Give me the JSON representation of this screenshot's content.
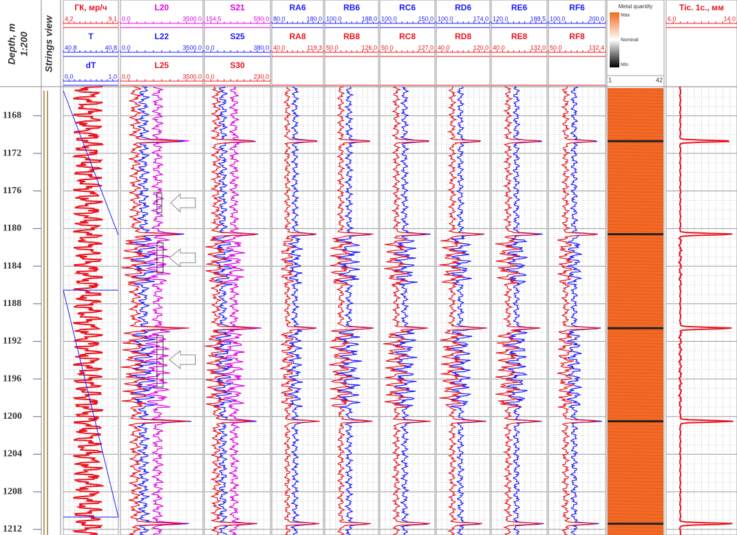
{
  "header": {
    "depth_label": "Depth, m",
    "scale": "1:200",
    "strings_label": "Strings view"
  },
  "depth": {
    "top": 1164.9,
    "bottom": 1212.6,
    "ticks": [
      1168,
      1172,
      1176,
      1180,
      1184,
      1188,
      1192,
      1196,
      1200,
      1204,
      1208,
      1212
    ]
  },
  "collars": [
    1170.7,
    1180.6,
    1190.6,
    1200.5,
    1211.4
  ],
  "tracks": [
    {
      "rows": [
        {
          "label": "ГК, мр/ч",
          "min": "4.2",
          "max": "9.1",
          "color": "#e8141e"
        },
        {
          "label": "T",
          "min": "40.8",
          "max": "40.8",
          "color": "#1a1aff"
        },
        {
          "label": "dT",
          "min": "0.0",
          "max": "1.0",
          "color": "#1a1aff"
        }
      ]
    },
    {
      "rows": [
        {
          "label": "L20",
          "min": "0.0",
          "max": "3500.0",
          "color": "#e000e0"
        },
        {
          "label": "L22",
          "min": "0.0",
          "max": "3500.0",
          "color": "#1a1aff"
        },
        {
          "label": "L25",
          "min": "0.0",
          "max": "3500.0",
          "color": "#e8141e"
        }
      ]
    },
    {
      "rows": [
        {
          "label": "S21",
          "min": "154.5",
          "max": "590.0",
          "color": "#e000e0"
        },
        {
          "label": "S25",
          "min": "0.0",
          "max": "380.0",
          "color": "#1a1aff"
        },
        {
          "label": "S30",
          "min": "0.0",
          "max": "230.0",
          "color": "#e8141e"
        }
      ]
    },
    {
      "rows": [
        {
          "label": "RA6",
          "min": "80.0",
          "max": "180.0",
          "color": "#1a1aff"
        },
        {
          "label": "RA8",
          "min": "40.0",
          "max": "119.3",
          "color": "#e8141e"
        }
      ]
    },
    {
      "rows": [
        {
          "label": "RB6",
          "min": "100.0",
          "max": "188.0",
          "color": "#1a1aff"
        },
        {
          "label": "RB8",
          "min": "50.0",
          "max": "126.0",
          "color": "#e8141e"
        }
      ]
    },
    {
      "rows": [
        {
          "label": "RC6",
          "min": "100.0",
          "max": "150.0",
          "color": "#1a1aff"
        },
        {
          "label": "RC8",
          "min": "50.0",
          "max": "127.0",
          "color": "#e8141e"
        }
      ]
    },
    {
      "rows": [
        {
          "label": "RD6",
          "min": "100.0",
          "max": "174.0",
          "color": "#1a1aff"
        },
        {
          "label": "RD8",
          "min": "40.0",
          "max": "120.0",
          "color": "#e8141e"
        }
      ]
    },
    {
      "rows": [
        {
          "label": "RE6",
          "min": "120.0",
          "max": "188.5",
          "color": "#1a1aff"
        },
        {
          "label": "RE8",
          "min": "40.0",
          "max": "132.0",
          "color": "#e8141e"
        }
      ]
    },
    {
      "rows": [
        {
          "label": "RF6",
          "min": "100.0",
          "max": "200.0",
          "color": "#1a1aff"
        },
        {
          "label": "RF8",
          "min": "50.0",
          "max": "132.4",
          "color": "#e8141e"
        }
      ]
    },
    {
      "rows": [
        {
          "label": "Tic. 1c., мм",
          "min": "6.0",
          "max": "14.0",
          "color": "#e8141e"
        }
      ]
    }
  ],
  "metal": {
    "title": "Metal quantity",
    "max": "Max",
    "nominal": "Nominal",
    "min": "Min",
    "left": "1",
    "right": "42"
  }
}
